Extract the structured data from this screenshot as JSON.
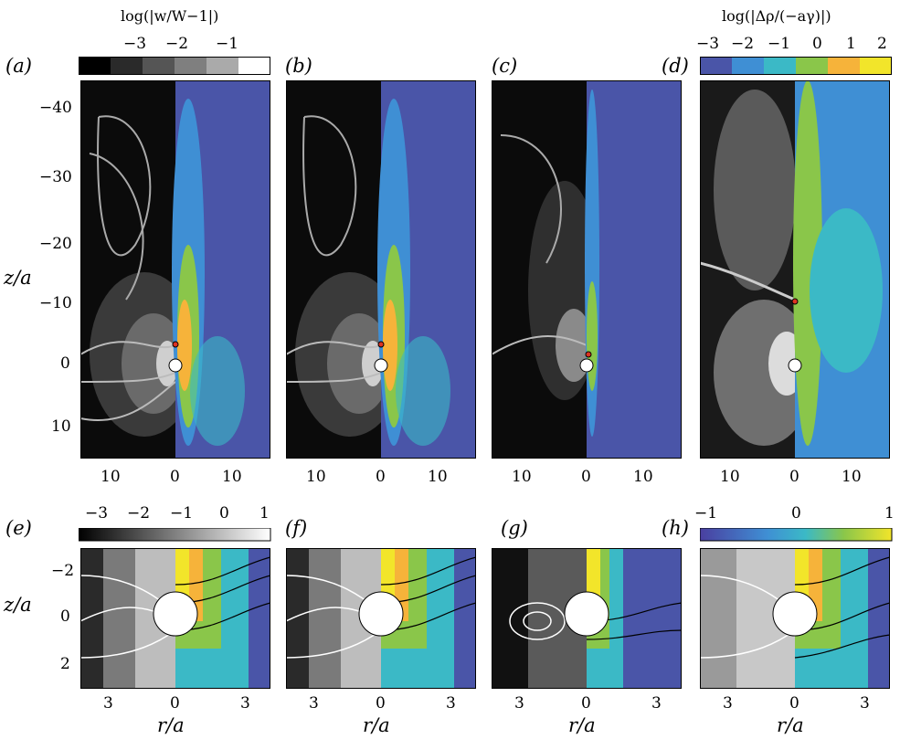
{
  "panel_labels": {
    "a": "(a)",
    "b": "(b)",
    "c": "(c)",
    "d": "(d)",
    "e": "(e)",
    "f": "(f)",
    "g": "(g)",
    "h": "(h)"
  },
  "colorbar_w": {
    "title": "log(|w/W−1|)",
    "ticks": [
      "−3",
      "−2",
      "−1"
    ]
  },
  "colorbar_rho": {
    "title": "log(|Δρ/(−aγ)|)",
    "ticks": [
      "−3",
      "−2",
      "−1",
      "0",
      "1",
      "2"
    ]
  },
  "colorbar_bottom_gray": {
    "ticks": [
      "−3",
      "−2",
      "−1",
      "0",
      "1"
    ]
  },
  "colorbar_bottom_color": {
    "ticks": [
      "−1",
      "0",
      "1"
    ]
  },
  "top_axes": {
    "ylabel": "z/a",
    "yticks": [
      "−40",
      "−30",
      "−20",
      "−10",
      "0",
      "10"
    ],
    "xticks": [
      "10",
      "0",
      "10"
    ]
  },
  "bottom_axes": {
    "ylabel": "z/a",
    "xlabel": "r/a",
    "yticks": [
      "−2",
      "0",
      "2"
    ],
    "xticks": [
      "3",
      "0",
      "3"
    ]
  }
}
